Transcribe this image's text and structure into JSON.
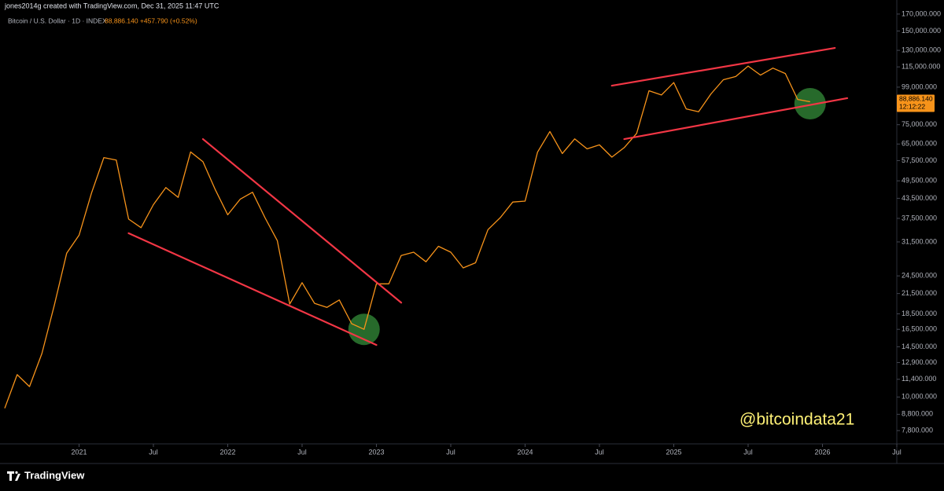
{
  "header": "jones2014g created with TradingView.com, Dec 31, 2025 11:47 UTC",
  "chart_data": {
    "type": "line",
    "symbol": "Bitcoin / U.S. Dollar · 1D · INDEX",
    "quote": "88,886.140 +457.790 (+0.52%)",
    "color": "#f7931a",
    "log_scale": true,
    "x": [
      "2020-07",
      "2020-08",
      "2020-09",
      "2020-10",
      "2020-11",
      "2020-12",
      "2021-01",
      "2021-02",
      "2021-03",
      "2021-04",
      "2021-05",
      "2021-06",
      "2021-07",
      "2021-08",
      "2021-09",
      "2021-10",
      "2021-11",
      "2021-12",
      "2022-01",
      "2022-02",
      "2022-03",
      "2022-04",
      "2022-05",
      "2022-06",
      "2022-07",
      "2022-08",
      "2022-09",
      "2022-10",
      "2022-11",
      "2022-12",
      "2023-01",
      "2023-02",
      "2023-03",
      "2023-04",
      "2023-05",
      "2023-06",
      "2023-07",
      "2023-08",
      "2023-09",
      "2023-10",
      "2023-11",
      "2023-12",
      "2024-01",
      "2024-02",
      "2024-03",
      "2024-04",
      "2024-05",
      "2024-06",
      "2024-07",
      "2024-08",
      "2024-09",
      "2024-10",
      "2024-11",
      "2024-12",
      "2025-01",
      "2025-02",
      "2025-03",
      "2025-04",
      "2025-05",
      "2025-06",
      "2025-07",
      "2025-08",
      "2025-09",
      "2025-10",
      "2025-11",
      "2025-12"
    ],
    "values": [
      9200,
      11800,
      10800,
      13800,
      19700,
      29000,
      33100,
      45200,
      58800,
      57700,
      37300,
      35000,
      41500,
      47100,
      43800,
      61300,
      57000,
      46300,
      38500,
      43200,
      45500,
      37700,
      31800,
      19900,
      23300,
      20000,
      19400,
      20500,
      17200,
      16500,
      23100,
      23100,
      28500,
      29200,
      27200,
      30500,
      29200,
      26000,
      27000,
      34500,
      37700,
      42300,
      42600,
      61200,
      71300,
      60600,
      67500,
      62700,
      64600,
      59000,
      63300,
      70300,
      96400,
      93400,
      102400,
      84300,
      82500,
      94200,
      104600,
      107100,
      115700,
      108200,
      114000,
      109500,
      90400,
      88886.14
    ],
    "xlim": [
      "2020-07",
      "2026-07"
    ],
    "xticks": [
      {
        "value": "2021-01",
        "label": "2021"
      },
      {
        "value": "2021-07",
        "label": "Jul"
      },
      {
        "value": "2022-01",
        "label": "2022"
      },
      {
        "value": "2022-07",
        "label": "Jul"
      },
      {
        "value": "2023-01",
        "label": "2023"
      },
      {
        "value": "2023-07",
        "label": "Jul"
      },
      {
        "value": "2024-01",
        "label": "2024"
      },
      {
        "value": "2024-07",
        "label": "Jul"
      },
      {
        "value": "2025-01",
        "label": "2025"
      },
      {
        "value": "2025-07",
        "label": "Jul"
      },
      {
        "value": "2026-01",
        "label": "2026"
      },
      {
        "value": "2026-07",
        "label": "Jul"
      }
    ],
    "ylim": [
      7070,
      178000
    ],
    "yticks": [
      {
        "value": 170000,
        "label": "170,000.000"
      },
      {
        "value": 150000,
        "label": "150,000.000"
      },
      {
        "value": 130000,
        "label": "130,000.000"
      },
      {
        "value": 115000,
        "label": "115,000.000"
      },
      {
        "value": 99000,
        "label": "99,000.000"
      },
      {
        "value": 75000,
        "label": "75,000.000"
      },
      {
        "value": 65000,
        "label": "65,000.000"
      },
      {
        "value": 57500,
        "label": "57,500.000"
      },
      {
        "value": 49500,
        "label": "49,500.000"
      },
      {
        "value": 43500,
        "label": "43,500.000"
      },
      {
        "value": 37500,
        "label": "37,500.000"
      },
      {
        "value": 31500,
        "label": "31,500.000"
      },
      {
        "value": 24500,
        "label": "24,500.000"
      },
      {
        "value": 21500,
        "label": "21,500.000"
      },
      {
        "value": 18500,
        "label": "18,500.000"
      },
      {
        "value": 16500,
        "label": "16,500.000"
      },
      {
        "value": 14500,
        "label": "14,500.000"
      },
      {
        "value": 12900,
        "label": "12,900.000"
      },
      {
        "value": 11400,
        "label": "11,400.000"
      },
      {
        "value": 10000,
        "label": "10,000.000"
      },
      {
        "value": 8800,
        "label": "8,800.000"
      },
      {
        "value": 7800,
        "label": "7,800.000"
      }
    ],
    "price_label": {
      "value": 88886.14,
      "label": "88,886.140",
      "countdown": "12:12:22"
    },
    "trendlines": [
      {
        "x": [
          "2021-05",
          "2023-01"
        ],
        "values": [
          33600,
          14700
        ],
        "color": "#f23645"
      },
      {
        "x": [
          "2021-11",
          "2023-03"
        ],
        "values": [
          67400,
          20100
        ],
        "color": "#f23645"
      },
      {
        "x": [
          "2024-08",
          "2026-02"
        ],
        "values": [
          100100,
          132300
        ],
        "color": "#f23645"
      },
      {
        "x": [
          "2024-09",
          "2026-03"
        ],
        "values": [
          67400,
          91250
        ],
        "color": "#f23645"
      }
    ],
    "highlights": [
      {
        "x": "2022-12",
        "value": 16500,
        "color": "#2e7d32"
      },
      {
        "x": "2025-12",
        "value": 87600,
        "color": "#2e7d32"
      }
    ],
    "watermark": "@bitcoindata21"
  },
  "footer": "TradingView"
}
